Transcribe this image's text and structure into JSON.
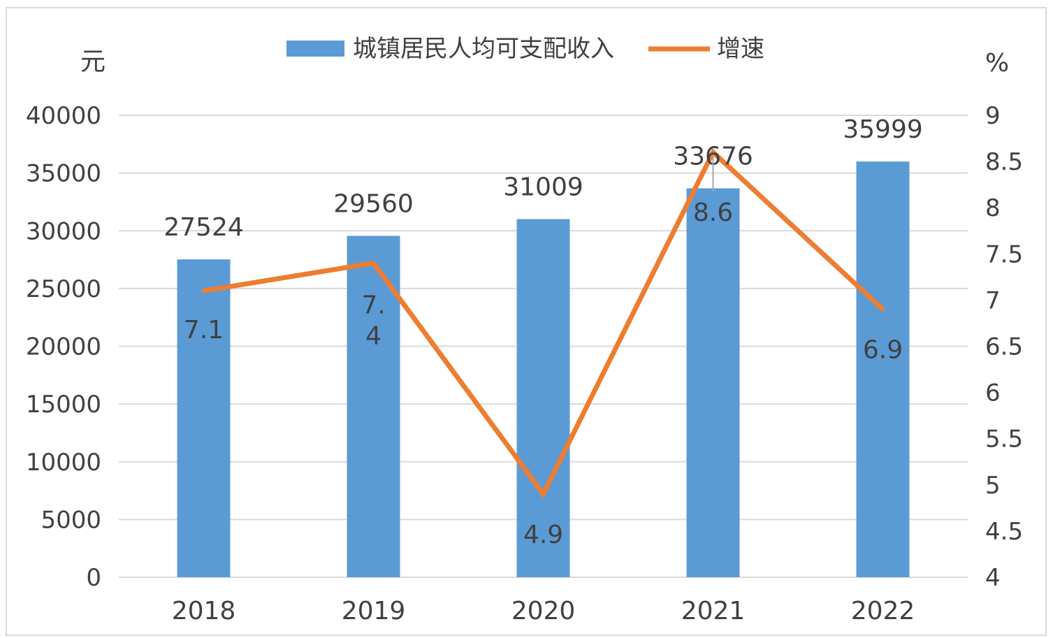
{
  "chart_data": {
    "type": "bar+line",
    "categories": [
      "2018",
      "2019",
      "2020",
      "2021",
      "2022"
    ],
    "series": [
      {
        "name": "城镇居民人均可支配收入",
        "type": "bar",
        "axis": "left",
        "values": [
          27524,
          29560,
          31009,
          33676,
          35999
        ],
        "labels": [
          "27524",
          "29560",
          "31009",
          "33676",
          "35999"
        ],
        "color": "#5b9bd5"
      },
      {
        "name": "增速",
        "type": "line",
        "axis": "right",
        "values": [
          7.1,
          7.4,
          4.9,
          8.6,
          6.9
        ],
        "labels": [
          "7.1",
          "7.\n4",
          "4.9",
          "8.6",
          "6.9"
        ],
        "color": "#ed7d31"
      }
    ],
    "left_axis": {
      "unit": "元",
      "range": [
        0,
        40000
      ],
      "ticks": [
        "0",
        "5000",
        "10000",
        "15000",
        "20000",
        "25000",
        "30000",
        "35000",
        "40000"
      ]
    },
    "right_axis": {
      "unit": "%",
      "range": [
        4,
        9
      ],
      "ticks": [
        "4",
        "4.5",
        "5",
        "5.5",
        "6",
        "6.5",
        "7",
        "7.5",
        "8",
        "8.5",
        "9"
      ]
    },
    "grid": true,
    "legend_position": "top"
  }
}
